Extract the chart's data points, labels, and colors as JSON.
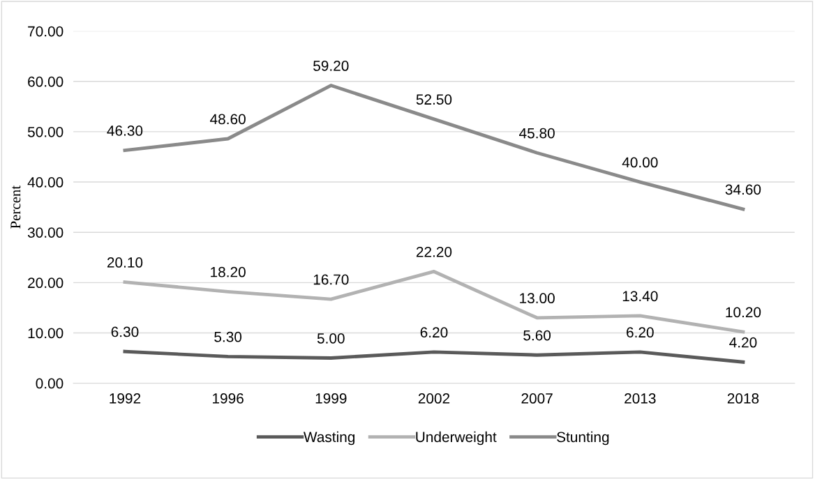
{
  "chart_data": {
    "type": "line",
    "ylabel": "Percent",
    "categories": [
      "1992",
      "1996",
      "1999",
      "2002",
      "2007",
      "2013",
      "2018"
    ],
    "series": [
      {
        "name": "Wasting",
        "color": "#5a5a5a",
        "values": [
          6.3,
          5.3,
          5.0,
          6.2,
          5.6,
          6.2,
          4.2
        ],
        "value_labels": [
          "6.30",
          "5.30",
          "5.00",
          "6.20",
          "5.60",
          "6.20",
          "4.20"
        ]
      },
      {
        "name": "Underweight",
        "color": "#b2b2b2",
        "values": [
          20.1,
          18.2,
          16.7,
          22.2,
          13.0,
          13.4,
          10.2
        ],
        "value_labels": [
          "20.10",
          "18.20",
          "16.70",
          "22.20",
          "13.00",
          "13.40",
          "10.20"
        ]
      },
      {
        "name": "Stunting",
        "color": "#8a8a8a",
        "values": [
          46.3,
          48.6,
          59.2,
          52.5,
          45.8,
          40.0,
          34.6
        ],
        "value_labels": [
          "46.30",
          "48.60",
          "59.20",
          "52.50",
          "45.80",
          "40.00",
          "34.60"
        ]
      }
    ],
    "ylim": [
      0,
      70
    ],
    "yticks": [
      {
        "value": 0,
        "label": "0.00"
      },
      {
        "value": 10,
        "label": "10.00"
      },
      {
        "value": 20,
        "label": "20.00"
      },
      {
        "value": 30,
        "label": "30.00"
      },
      {
        "value": 40,
        "label": "40.00"
      },
      {
        "value": 50,
        "label": "50.00"
      },
      {
        "value": 60,
        "label": "60.00"
      },
      {
        "value": 70,
        "label": "70.00"
      }
    ],
    "grid": "y",
    "legend": "bottom",
    "marker": "none",
    "line_style": "solid"
  }
}
